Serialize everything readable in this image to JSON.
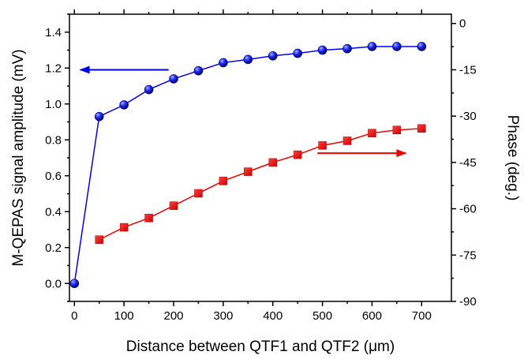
{
  "chart_data": {
    "type": "line",
    "xlabel": "Distance between QTF1 and QTF2 (μm)",
    "ylabel": "M-QEPAS signal amplitude (mV)",
    "y2label": "Phase (deg.)",
    "xlim": [
      -10,
      760
    ],
    "ylim": [
      -0.1,
      1.5
    ],
    "y2lim": [
      -90,
      3
    ],
    "x_ticks": [
      0,
      100,
      200,
      300,
      400,
      500,
      600,
      700
    ],
    "y_ticks": [
      0.0,
      0.2,
      0.4,
      0.6,
      0.8,
      1.0,
      1.2,
      1.4
    ],
    "y_tick_labels": [
      "0.0",
      "0.2",
      "0.4",
      "0.6",
      "0.8",
      "1.0",
      "1.2",
      "1.4"
    ],
    "y2_ticks": [
      0,
      -15,
      -30,
      -45,
      -60,
      -75,
      -90
    ],
    "grid": false,
    "series": [
      {
        "axis": "left",
        "color": "#0000ee",
        "marker": "circle",
        "x": [
          0,
          50,
          100,
          150,
          200,
          250,
          300,
          350,
          400,
          450,
          500,
          550,
          600,
          650,
          700
        ],
        "values": [
          0.0,
          0.93,
          0.995,
          1.08,
          1.14,
          1.185,
          1.23,
          1.248,
          1.268,
          1.282,
          1.3,
          1.308,
          1.32,
          1.32,
          1.32
        ]
      },
      {
        "axis": "right",
        "color": "#ee0000",
        "marker": "square",
        "x": [
          50,
          100,
          150,
          200,
          250,
          300,
          350,
          400,
          450,
          500,
          550,
          600,
          650,
          700
        ],
        "values": [
          -70.0,
          -66.0,
          -63.0,
          -59.0,
          -55.0,
          -51.0,
          -48.0,
          -45.0,
          -42.5,
          -39.5,
          -38.0,
          -35.5,
          -34.5,
          -34.0
        ]
      }
    ],
    "annotations": [
      {
        "type": "arrow",
        "direction": "left",
        "color": "#0000ee",
        "x_from": 190,
        "x_to": 10,
        "y": 1.19,
        "axis": "left"
      },
      {
        "type": "arrow",
        "direction": "right",
        "color": "#ee0000",
        "x_from": 490,
        "x_to": 670,
        "y": -42,
        "axis": "right"
      }
    ]
  }
}
